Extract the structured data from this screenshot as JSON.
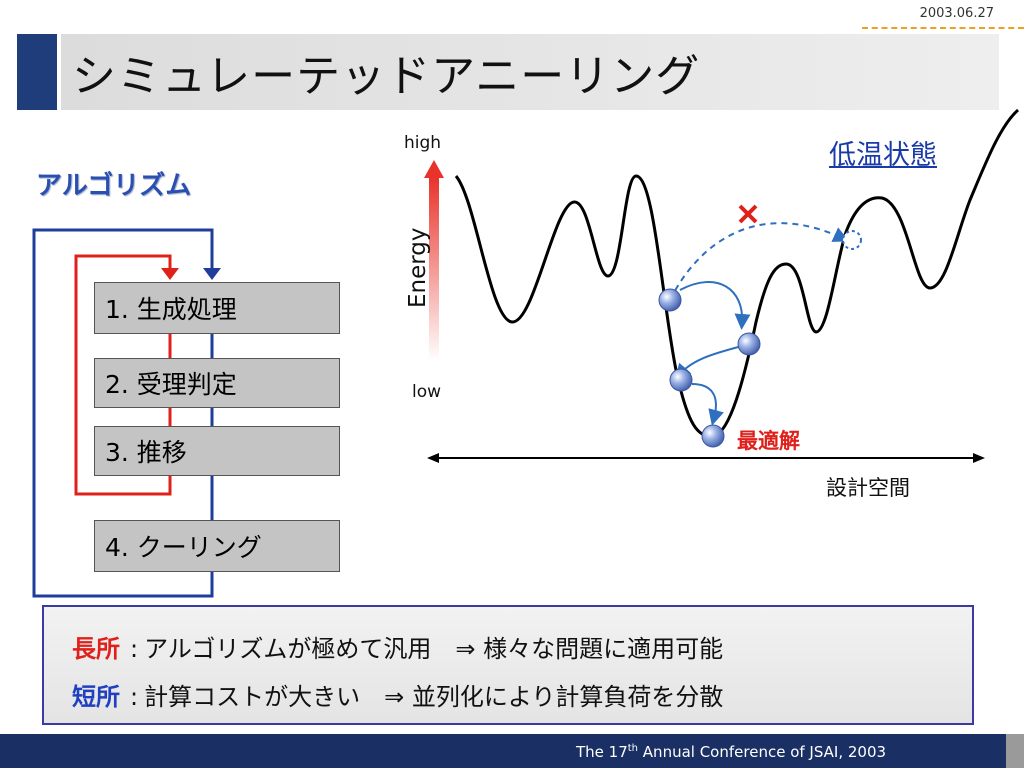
{
  "date": "2003.06.27",
  "title": "シミュレーテッドアニーリング",
  "algorithm": {
    "heading": "アルゴリズム",
    "steps": [
      {
        "label": "1. 生成処理"
      },
      {
        "label": "2. 受理判定"
      },
      {
        "label": "3. 推移"
      },
      {
        "label": "4. クーリング"
      }
    ]
  },
  "landscape": {
    "y_axis_label": "Energy",
    "high_label": "high",
    "low_label": "low",
    "state_label": "低温状態",
    "optimum_label": "最適解",
    "x_axis_label": "設計空間",
    "colors": {
      "curve": "#000000",
      "ball": "#7a96d8",
      "arrow": "#2f6fc0",
      "reject": "#e0201a",
      "energy_arrow": "#e8322a"
    }
  },
  "summary": {
    "pro": {
      "tag": "長所",
      "sep": ":",
      "text": "アルゴリズムが極めて汎用　⇒ 様々な問題に適用可能",
      "color": "#e0201a"
    },
    "con": {
      "tag": "短所",
      "sep": ":",
      "text": "計算コストが大きい　⇒ 並列化により計算負荷を分散",
      "color": "#2040c0"
    }
  },
  "footer": {
    "pre": "The 17",
    "sup": "th",
    "post": " Annual Conference of JSAI, 2003"
  }
}
